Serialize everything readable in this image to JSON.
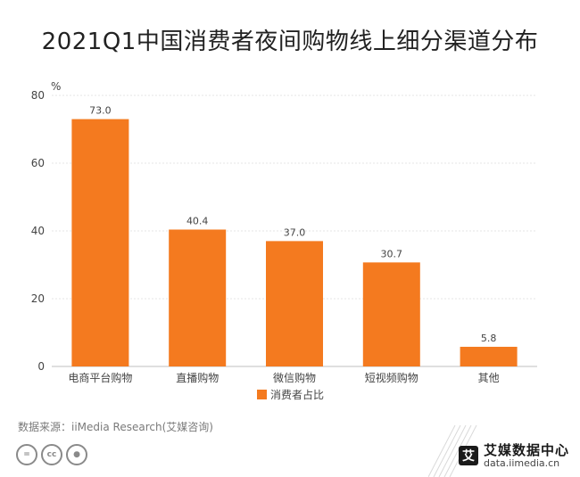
{
  "title": "2021Q1中国消费者夜间购物线上细分渠道分布",
  "source": "数据来源：iiMedia Research(艾媒咨询)",
  "brand": {
    "name": "艾媒数据中心",
    "url": "data.iimedia.cn",
    "logo_char": "艾"
  },
  "license_icons": [
    "equals-icon",
    "cc-icon",
    "person-icon"
  ],
  "colors": {
    "bar": "#F47A1F",
    "grid": "#e6e6e6",
    "text": "#444444"
  },
  "chart_data": {
    "type": "bar",
    "categories": [
      "电商平台购物",
      "直播购物",
      "微信购物",
      "短视频购物",
      "其他"
    ],
    "series": [
      {
        "name": "消费者占比",
        "values": [
          73.0,
          40.4,
          37.0,
          30.7,
          5.8
        ]
      }
    ],
    "ylabel": "%",
    "ylim": [
      0,
      80
    ],
    "yticks": [
      0,
      20,
      40,
      60,
      80
    ],
    "grid": true,
    "legend": "bottom-center"
  }
}
